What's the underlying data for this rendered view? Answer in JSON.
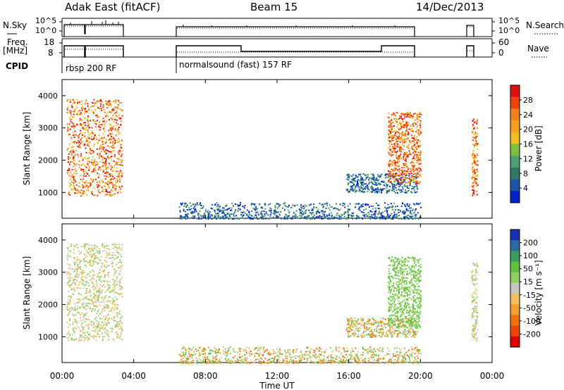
{
  "header": {
    "station": "Adak East (fitACF)",
    "beam": "Beam 15",
    "date": "14/Dec/2013"
  },
  "top_panels": {
    "nsky_label": "N.Sky",
    "nsky_ticks": [
      "10^5",
      "10^0"
    ],
    "nsearch_label": "N.Search",
    "nsearch_ticks": [
      "10^5",
      "10^0"
    ],
    "freq_label": "Freq.",
    "freq_unit": "[MHz]",
    "freq_ticks": [
      "18",
      "8"
    ],
    "nave_label": "Nave",
    "nave_ticks": [
      "60",
      "0"
    ],
    "cpid_label": "CPID",
    "cpid_entries": [
      {
        "text": "rbsp 200 RF"
      },
      {
        "text": "normalsound (fast) 157 RF"
      }
    ]
  },
  "colors": {
    "power": [
      "#0022cc",
      "#1b55aa",
      "#2f7a66",
      "#4fa070",
      "#7fbf3f",
      "#f0c020",
      "#f5a020",
      "#f08020",
      "#f04010",
      "#e01010"
    ],
    "velocity": [
      "#e00000",
      "#f04010",
      "#f07010",
      "#f0a030",
      "#f0c060",
      "#c8c8c0",
      "#90d060",
      "#60c040",
      "#3a9a60",
      "#2a6aa0",
      "#1830b0"
    ],
    "accent_black": "#000000"
  },
  "chart_data": [
    {
      "type": "heatmap",
      "title": "",
      "xlabel": "",
      "ylabel": "Slant Range [km]",
      "xlim": [
        "00:00",
        "24:00"
      ],
      "ylim": [
        200,
        4500
      ],
      "x_ticks": [
        "00:00",
        "04:00",
        "08:00",
        "12:00",
        "16:00",
        "20:00",
        "00:00"
      ],
      "y_ticks": [
        1000,
        2000,
        3000,
        4000
      ],
      "colorbar": {
        "label": "Power [dB]",
        "ticks": [
          4,
          8,
          12,
          16,
          20,
          24,
          28
        ]
      },
      "regions": [
        {
          "t_start": "00:15",
          "t_end": "03:20",
          "range_start": 900,
          "range_end": 3900,
          "dominant": "16-28 dB"
        },
        {
          "t_start": "06:30",
          "t_end": "20:00",
          "range_start": 200,
          "range_end": 700,
          "dominant": "4-12 dB"
        },
        {
          "t_start": "15:50",
          "t_end": "19:50",
          "range_start": 1000,
          "range_end": 1600,
          "dominant": "4-8 dB"
        },
        {
          "t_start": "18:10",
          "t_end": "20:00",
          "range_start": 1300,
          "range_end": 3500,
          "dominant": "16-28 dB"
        },
        {
          "t_start": "22:50",
          "t_end": "23:10",
          "range_start": 900,
          "range_end": 3300,
          "dominant": "20-28 dB"
        }
      ]
    },
    {
      "type": "heatmap",
      "title": "",
      "xlabel": "Time UT",
      "ylabel": "Slant Range [km]",
      "xlim": [
        "00:00",
        "24:00"
      ],
      "ylim": [
        200,
        4500
      ],
      "x_ticks": [
        "00:00",
        "04:00",
        "08:00",
        "12:00",
        "16:00",
        "20:00",
        "00:00"
      ],
      "y_ticks": [
        1000,
        2000,
        3000,
        4000
      ],
      "colorbar": {
        "label": "Velocity [m s⁻¹]",
        "ticks": [
          200,
          100,
          50,
          15,
          -15,
          -50,
          -100,
          -200
        ]
      },
      "regions": [
        {
          "t_start": "00:15",
          "t_end": "03:20",
          "range_start": 900,
          "range_end": 3900,
          "dominant": "-15 to 15 m/s"
        },
        {
          "t_start": "06:30",
          "t_end": "20:00",
          "range_start": 200,
          "range_end": 700,
          "dominant": "-50 to 50 m/s"
        },
        {
          "t_start": "15:50",
          "t_end": "19:50",
          "range_start": 1000,
          "range_end": 1600,
          "dominant": "-50 to 50 m/s"
        },
        {
          "t_start": "18:10",
          "t_end": "20:00",
          "range_start": 1300,
          "range_end": 3500,
          "dominant": "15 to 50 m/s"
        },
        {
          "t_start": "22:50",
          "t_end": "23:10",
          "range_start": 900,
          "range_end": 3300,
          "dominant": "-15 to 15 m/s"
        }
      ]
    }
  ]
}
